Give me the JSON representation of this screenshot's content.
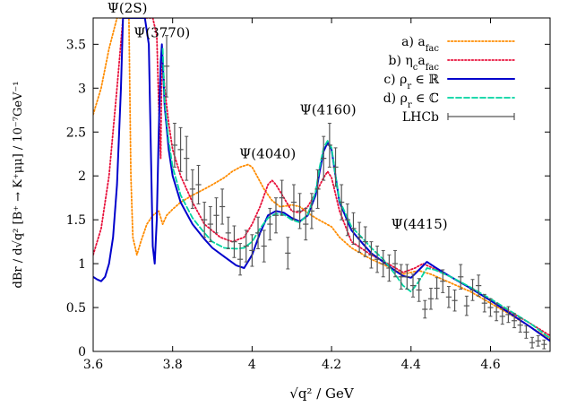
{
  "chart_data": {
    "type": "line",
    "xlabel": "√q² / GeV",
    "ylabel": "dBr / d√q² [B⁺ → K⁺μμ] / 10⁻⁷GeV⁻¹",
    "xlim": [
      3.6,
      4.75
    ],
    "ylim": [
      0,
      3.8
    ],
    "x_ticks": [
      "3.6",
      "3.8",
      "4",
      "4.2",
      "4.4",
      "4.6"
    ],
    "y_ticks": [
      "0",
      "0.5",
      "1",
      "1.5",
      "2",
      "2.5",
      "3",
      "3.5"
    ],
    "annotations": [
      {
        "text": "Ψ(2S)",
        "x": 3.686,
        "y": 3.9
      },
      {
        "text": "Ψ(3770)",
        "x": 3.773,
        "y": 3.58
      },
      {
        "text": "Ψ(4040)",
        "x": 4.039,
        "y": 2.2
      },
      {
        "text": "Ψ(4160)",
        "x": 4.191,
        "y": 2.7
      },
      {
        "text": "Ψ(4415)",
        "x": 4.421,
        "y": 1.4
      }
    ],
    "legend_position": "top-right",
    "series": [
      {
        "name": "a)  a_fac",
        "label_main": "a)",
        "label_var": "a",
        "label_sub": "fac",
        "color": "#ff8c00",
        "style": "dotted",
        "x": [
          3.6,
          3.62,
          3.64,
          3.66,
          3.675,
          3.682,
          3.69,
          3.695,
          3.7,
          3.71,
          3.72,
          3.735,
          3.75,
          3.765,
          3.775,
          3.785,
          3.8,
          3.82,
          3.85,
          3.88,
          3.9,
          3.93,
          3.95,
          3.97,
          3.99,
          4.0,
          4.01,
          4.03,
          4.05,
          4.07,
          4.09,
          4.1,
          4.12,
          4.14,
          4.16,
          4.18,
          4.2,
          4.22,
          4.25,
          4.3,
          4.35,
          4.38,
          4.4,
          4.42,
          4.45,
          4.5,
          4.55,
          4.6,
          4.65,
          4.7,
          4.75
        ],
        "y": [
          2.7,
          3.0,
          3.45,
          3.8,
          3.8,
          3.8,
          3.8,
          2.0,
          1.3,
          1.1,
          1.25,
          1.45,
          1.55,
          1.6,
          1.45,
          1.55,
          1.62,
          1.7,
          1.78,
          1.85,
          1.9,
          1.98,
          2.05,
          2.1,
          2.13,
          2.1,
          2.02,
          1.85,
          1.72,
          1.65,
          1.66,
          1.67,
          1.65,
          1.58,
          1.52,
          1.47,
          1.42,
          1.3,
          1.18,
          1.05,
          0.95,
          0.88,
          0.9,
          0.92,
          0.88,
          0.78,
          0.68,
          0.55,
          0.42,
          0.28,
          0.14
        ]
      },
      {
        "name": "b)  η_c a_fac",
        "label_main": "b)",
        "label_var": "η",
        "label_sub": "c",
        "label_tail": "a",
        "label_tail_sub": "fac",
        "color": "#e8103a",
        "style": "dotted",
        "x": [
          3.6,
          3.62,
          3.64,
          3.66,
          3.675,
          3.682,
          3.69,
          3.7,
          3.71,
          3.72,
          3.735,
          3.75,
          3.76,
          3.765,
          3.77,
          3.773,
          3.78,
          3.79,
          3.8,
          3.82,
          3.85,
          3.88,
          3.92,
          3.95,
          3.98,
          4.0,
          4.02,
          4.04,
          4.05,
          4.06,
          4.08,
          4.1,
          4.12,
          4.14,
          4.16,
          4.18,
          4.19,
          4.2,
          4.22,
          4.25,
          4.3,
          4.35,
          4.38,
          4.41,
          4.43,
          4.45,
          4.5,
          4.55,
          4.6,
          4.65,
          4.7,
          4.75
        ],
        "y": [
          1.1,
          1.4,
          2.0,
          3.0,
          3.8,
          3.8,
          3.8,
          3.8,
          3.8,
          3.8,
          3.8,
          3.8,
          3.6,
          2.8,
          2.2,
          3.4,
          3.0,
          2.6,
          2.3,
          2.0,
          1.7,
          1.45,
          1.3,
          1.25,
          1.3,
          1.45,
          1.65,
          1.9,
          1.95,
          1.9,
          1.75,
          1.6,
          1.58,
          1.65,
          1.8,
          1.98,
          2.05,
          1.98,
          1.6,
          1.25,
          1.1,
          0.98,
          0.9,
          0.95,
          1.0,
          0.96,
          0.85,
          0.72,
          0.58,
          0.45,
          0.32,
          0.18
        ]
      },
      {
        "name": "c)  ρ_r ∈ ℝ",
        "label_main": "c)",
        "label_var": "ρ",
        "label_sub": "r",
        "label_tail": " ∈ ℝ",
        "color": "#0000cc",
        "style": "solid",
        "x": [
          3.6,
          3.61,
          3.62,
          3.63,
          3.64,
          3.65,
          3.66,
          3.67,
          3.675,
          3.68,
          3.686,
          3.69,
          3.695,
          3.7,
          3.71,
          3.72,
          3.73,
          3.74,
          3.75,
          3.755,
          3.76,
          3.765,
          3.77,
          3.773,
          3.776,
          3.78,
          3.79,
          3.8,
          3.82,
          3.85,
          3.88,
          3.9,
          3.93,
          3.96,
          3.98,
          4.0,
          4.02,
          4.04,
          4.06,
          4.08,
          4.1,
          4.12,
          4.14,
          4.16,
          4.17,
          4.18,
          4.19,
          4.2,
          4.21,
          4.22,
          4.25,
          4.28,
          4.3,
          4.33,
          4.36,
          4.38,
          4.4,
          4.42,
          4.44,
          4.46,
          4.5,
          4.55,
          4.6,
          4.65,
          4.7,
          4.75
        ],
        "y": [
          0.85,
          0.82,
          0.8,
          0.85,
          1.0,
          1.3,
          1.9,
          3.0,
          3.8,
          3.8,
          3.8,
          3.8,
          3.8,
          3.8,
          3.8,
          3.8,
          3.8,
          3.5,
          1.2,
          1.0,
          1.5,
          2.5,
          3.3,
          3.5,
          3.2,
          2.8,
          2.3,
          2.0,
          1.7,
          1.45,
          1.28,
          1.18,
          1.08,
          0.98,
          0.95,
          1.1,
          1.35,
          1.55,
          1.6,
          1.58,
          1.52,
          1.48,
          1.55,
          1.78,
          2.05,
          2.28,
          2.38,
          2.3,
          2.0,
          1.7,
          1.38,
          1.22,
          1.12,
          1.02,
          0.92,
          0.86,
          0.84,
          0.93,
          1.02,
          0.96,
          0.85,
          0.72,
          0.58,
          0.43,
          0.28,
          0.12
        ]
      },
      {
        "name": "d)  ρ_r ∈ ℂ",
        "label_main": "d)",
        "label_var": "ρ",
        "label_sub": "r",
        "label_tail": " ∈ ℂ",
        "color": "#00d4a0",
        "style": "dashed",
        "x": [
          3.775,
          3.78,
          3.79,
          3.8,
          3.82,
          3.85,
          3.88,
          3.9,
          3.93,
          3.96,
          3.98,
          4.0,
          4.02,
          4.04,
          4.06,
          4.08,
          4.1,
          4.12,
          4.14,
          4.16,
          4.17,
          4.18,
          4.19,
          4.2,
          4.21,
          4.22,
          4.25,
          4.28,
          4.3,
          4.33,
          4.36,
          4.38,
          4.4,
          4.42,
          4.44,
          4.46,
          4.5,
          4.55,
          4.6,
          4.65,
          4.7,
          4.75
        ],
        "y": [
          3.45,
          2.85,
          2.4,
          2.1,
          1.78,
          1.52,
          1.35,
          1.25,
          1.18,
          1.17,
          1.18,
          1.25,
          1.4,
          1.52,
          1.57,
          1.56,
          1.5,
          1.47,
          1.56,
          1.82,
          2.1,
          2.32,
          2.4,
          2.32,
          2.0,
          1.72,
          1.42,
          1.28,
          1.18,
          1.05,
          0.88,
          0.75,
          0.68,
          0.8,
          0.95,
          0.93,
          0.85,
          0.73,
          0.6,
          0.46,
          0.32,
          0.15
        ]
      },
      {
        "name": "LHCb",
        "label_main": "LHCb",
        "color": "#555555",
        "style": "errorbar",
        "x": [
          3.785,
          3.805,
          3.82,
          3.835,
          3.85,
          3.865,
          3.88,
          3.895,
          3.91,
          3.925,
          3.94,
          3.955,
          3.97,
          3.985,
          4.0,
          4.015,
          4.03,
          4.045,
          4.06,
          4.075,
          4.09,
          4.105,
          4.12,
          4.135,
          4.15,
          4.165,
          4.18,
          4.195,
          4.21,
          4.225,
          4.24,
          4.255,
          4.27,
          4.285,
          4.3,
          4.315,
          4.33,
          4.345,
          4.36,
          4.375,
          4.39,
          4.405,
          4.42,
          4.435,
          4.45,
          4.465,
          4.48,
          4.495,
          4.51,
          4.525,
          4.54,
          4.555,
          4.57,
          4.585,
          4.6,
          4.615,
          4.63,
          4.645,
          4.66,
          4.675,
          4.69,
          4.705,
          4.72,
          4.735
        ],
        "y": [
          3.25,
          2.35,
          2.3,
          2.2,
          1.85,
          1.9,
          1.5,
          1.45,
          1.55,
          1.65,
          1.35,
          1.25,
          1.05,
          1.2,
          1.15,
          1.35,
          1.2,
          1.45,
          1.55,
          1.75,
          1.12,
          1.7,
          1.6,
          1.45,
          1.6,
          1.85,
          2.2,
          2.35,
          2.1,
          1.7,
          1.5,
          1.4,
          1.3,
          1.25,
          1.1,
          1.05,
          1.0,
          0.95,
          1.0,
          0.85,
          0.85,
          0.75,
          0.7,
          0.48,
          0.6,
          0.72,
          0.8,
          0.62,
          0.58,
          0.85,
          0.52,
          0.7,
          0.75,
          0.55,
          0.5,
          0.45,
          0.4,
          0.42,
          0.35,
          0.3,
          0.22,
          0.1,
          0.12,
          0.08
        ],
        "yerr": [
          0.35,
          0.25,
          0.25,
          0.25,
          0.22,
          0.22,
          0.2,
          0.2,
          0.2,
          0.2,
          0.18,
          0.18,
          0.18,
          0.18,
          0.18,
          0.18,
          0.18,
          0.18,
          0.2,
          0.2,
          0.18,
          0.2,
          0.2,
          0.18,
          0.2,
          0.22,
          0.25,
          0.25,
          0.22,
          0.2,
          0.18,
          0.18,
          0.17,
          0.17,
          0.15,
          0.15,
          0.15,
          0.15,
          0.15,
          0.14,
          0.14,
          0.13,
          0.13,
          0.1,
          0.12,
          0.12,
          0.13,
          0.12,
          0.12,
          0.14,
          0.11,
          0.12,
          0.12,
          0.1,
          0.1,
          0.1,
          0.09,
          0.09,
          0.08,
          0.08,
          0.07,
          0.06,
          0.06,
          0.05
        ],
        "xerr": 0.007
      }
    ]
  }
}
